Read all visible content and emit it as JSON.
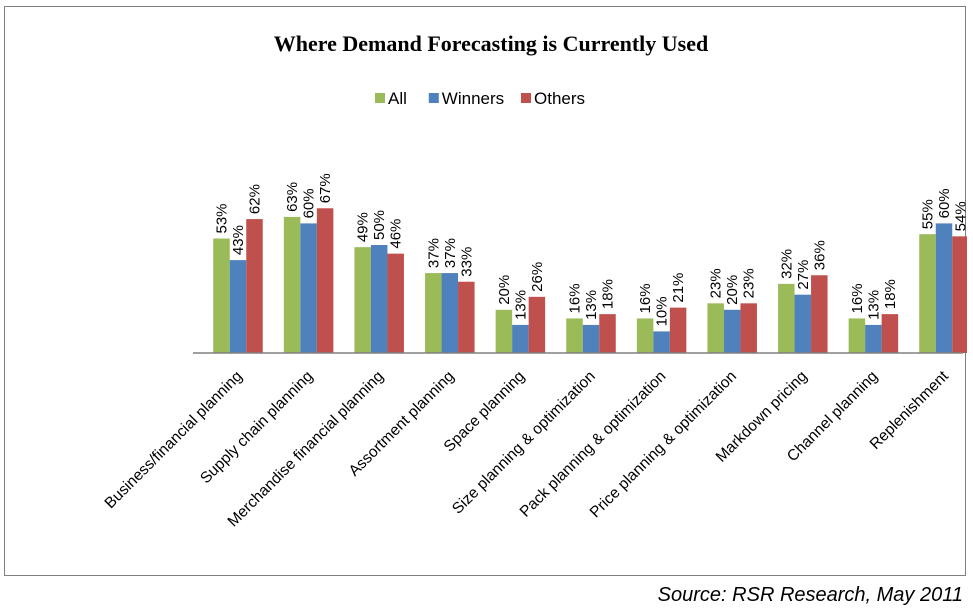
{
  "chart_data": {
    "type": "bar",
    "title": "Where Demand Forecasting is Currently Used",
    "categories": [
      "Business/financial planning",
      "Supply chain planning",
      "Merchandise financial planning",
      "Assortment planning",
      "Space planning",
      "Size planning & optimization",
      "Pack planning & optimization",
      "Price planning & optimization",
      "Markdown pricing",
      "Channel planning",
      "Replenishment"
    ],
    "series": [
      {
        "name": "All",
        "color": "#9bbb59",
        "values": [
          53,
          63,
          49,
          37,
          20,
          16,
          16,
          23,
          32,
          16,
          55
        ]
      },
      {
        "name": "Winners",
        "color": "#4f81bd",
        "values": [
          43,
          60,
          50,
          37,
          13,
          13,
          10,
          20,
          27,
          13,
          60
        ]
      },
      {
        "name": "Others",
        "color": "#c0504d",
        "values": [
          62,
          67,
          46,
          33,
          26,
          18,
          21,
          23,
          36,
          18,
          54
        ]
      }
    ],
    "value_suffix": "%",
    "ylim": [
      0,
      70
    ],
    "grid": false,
    "legend_position": "top"
  },
  "source": "Source: RSR Research, May 2011"
}
